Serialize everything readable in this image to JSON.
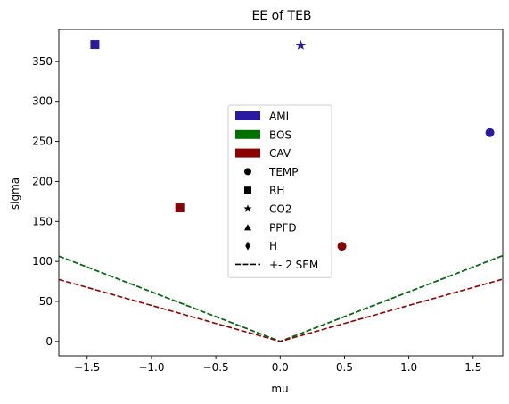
{
  "chart_data": {
    "type": "scatter",
    "title": "EE of TEB",
    "xlabel": "mu",
    "ylabel": "sigma",
    "xlim": [
      -1.72,
      1.73
    ],
    "ylim": [
      -18,
      390
    ],
    "xticks": [
      -1.5,
      -1.0,
      -0.5,
      0.0,
      0.5,
      1.0,
      1.5
    ],
    "xtick_labels": [
      "−1.5",
      "−1.0",
      "−0.5",
      "0.0",
      "0.5",
      "1.0",
      "1.5"
    ],
    "yticks": [
      0,
      50,
      100,
      150,
      200,
      250,
      300,
      350
    ],
    "ytick_labels": [
      "0",
      "50",
      "100",
      "150",
      "200",
      "250",
      "300",
      "350"
    ],
    "grid": false,
    "legend_position": "center",
    "colors": {
      "AMI": "#2a1aa0",
      "BOS": "#007000",
      "CAV": "#8b0000"
    },
    "points": [
      {
        "group": "AMI",
        "variable": "RH",
        "x": -1.44,
        "y": 371
      },
      {
        "group": "AMI",
        "variable": "CO2",
        "x": 0.16,
        "y": 370
      },
      {
        "group": "AMI",
        "variable": "TEMP",
        "x": 1.63,
        "y": 261
      },
      {
        "group": "CAV",
        "variable": "RH",
        "x": -0.78,
        "y": 167
      },
      {
        "group": "CAV",
        "variable": "TEMP",
        "x": 0.48,
        "y": 119
      }
    ],
    "sem_lines": [
      {
        "group": "AMI",
        "slope": 62
      },
      {
        "group": "BOS",
        "slope": 62
      },
      {
        "group": "CAV",
        "slope": 45
      }
    ],
    "legend": {
      "groups": [
        "AMI",
        "BOS",
        "CAV"
      ],
      "markers": [
        {
          "label": "TEMP",
          "shape": "circle"
        },
        {
          "label": "RH",
          "shape": "square"
        },
        {
          "label": "CO2",
          "shape": "star"
        },
        {
          "label": "PPFD",
          "shape": "triangle"
        },
        {
          "label": "H",
          "shape": "diamond"
        }
      ],
      "line_label": "+- 2 SEM"
    }
  }
}
